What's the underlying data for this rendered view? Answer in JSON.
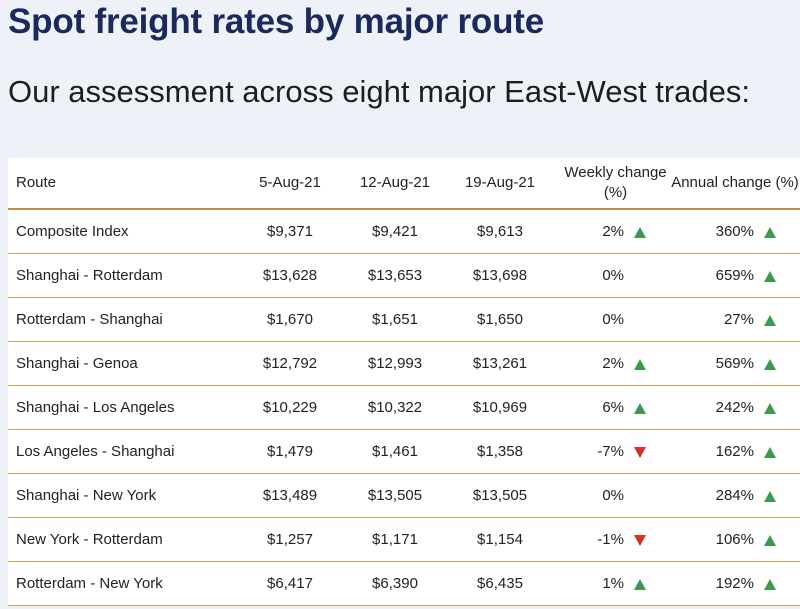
{
  "header": {
    "title": "Spot freight rates by major route",
    "subtitle": "Our assessment across eight major East-West trades:"
  },
  "table": {
    "columns": [
      "Route",
      "5-Aug-21",
      "12-Aug-21",
      "19-Aug-21",
      "Weekly change (%)",
      "Annual change (%)"
    ],
    "rows": [
      [
        "Composite Index",
        "$9,371",
        "$9,421",
        "$9,613",
        "2%",
        "360%"
      ],
      [
        "Shanghai - Rotterdam",
        "$13,628",
        "$13,653",
        "$13,698",
        "0%",
        "659%"
      ],
      [
        "Rotterdam - Shanghai",
        "$1,670",
        "$1,651",
        "$1,650",
        "0%",
        "27%"
      ],
      [
        "Shanghai - Genoa",
        "$12,792",
        "$12,993",
        "$13,261",
        "2%",
        "569%"
      ],
      [
        "Shanghai - Los Angeles",
        "$10,229",
        "$10,322",
        "$10,969",
        "6%",
        "242%"
      ],
      [
        "Los Angeles - Shanghai",
        "$1,479",
        "$1,461",
        "$1,358",
        "-7%",
        "162%"
      ],
      [
        "Shanghai - New York",
        "$13,489",
        "$13,505",
        "$13,505",
        "0%",
        "284%"
      ],
      [
        "New York - Rotterdam",
        "$1,257",
        "$1,171",
        "$1,154",
        "-1%",
        "106%"
      ],
      [
        "Rotterdam - New York",
        "$6,417",
        "$6,390",
        "$6,435",
        "1%",
        "192%"
      ]
    ]
  }
}
